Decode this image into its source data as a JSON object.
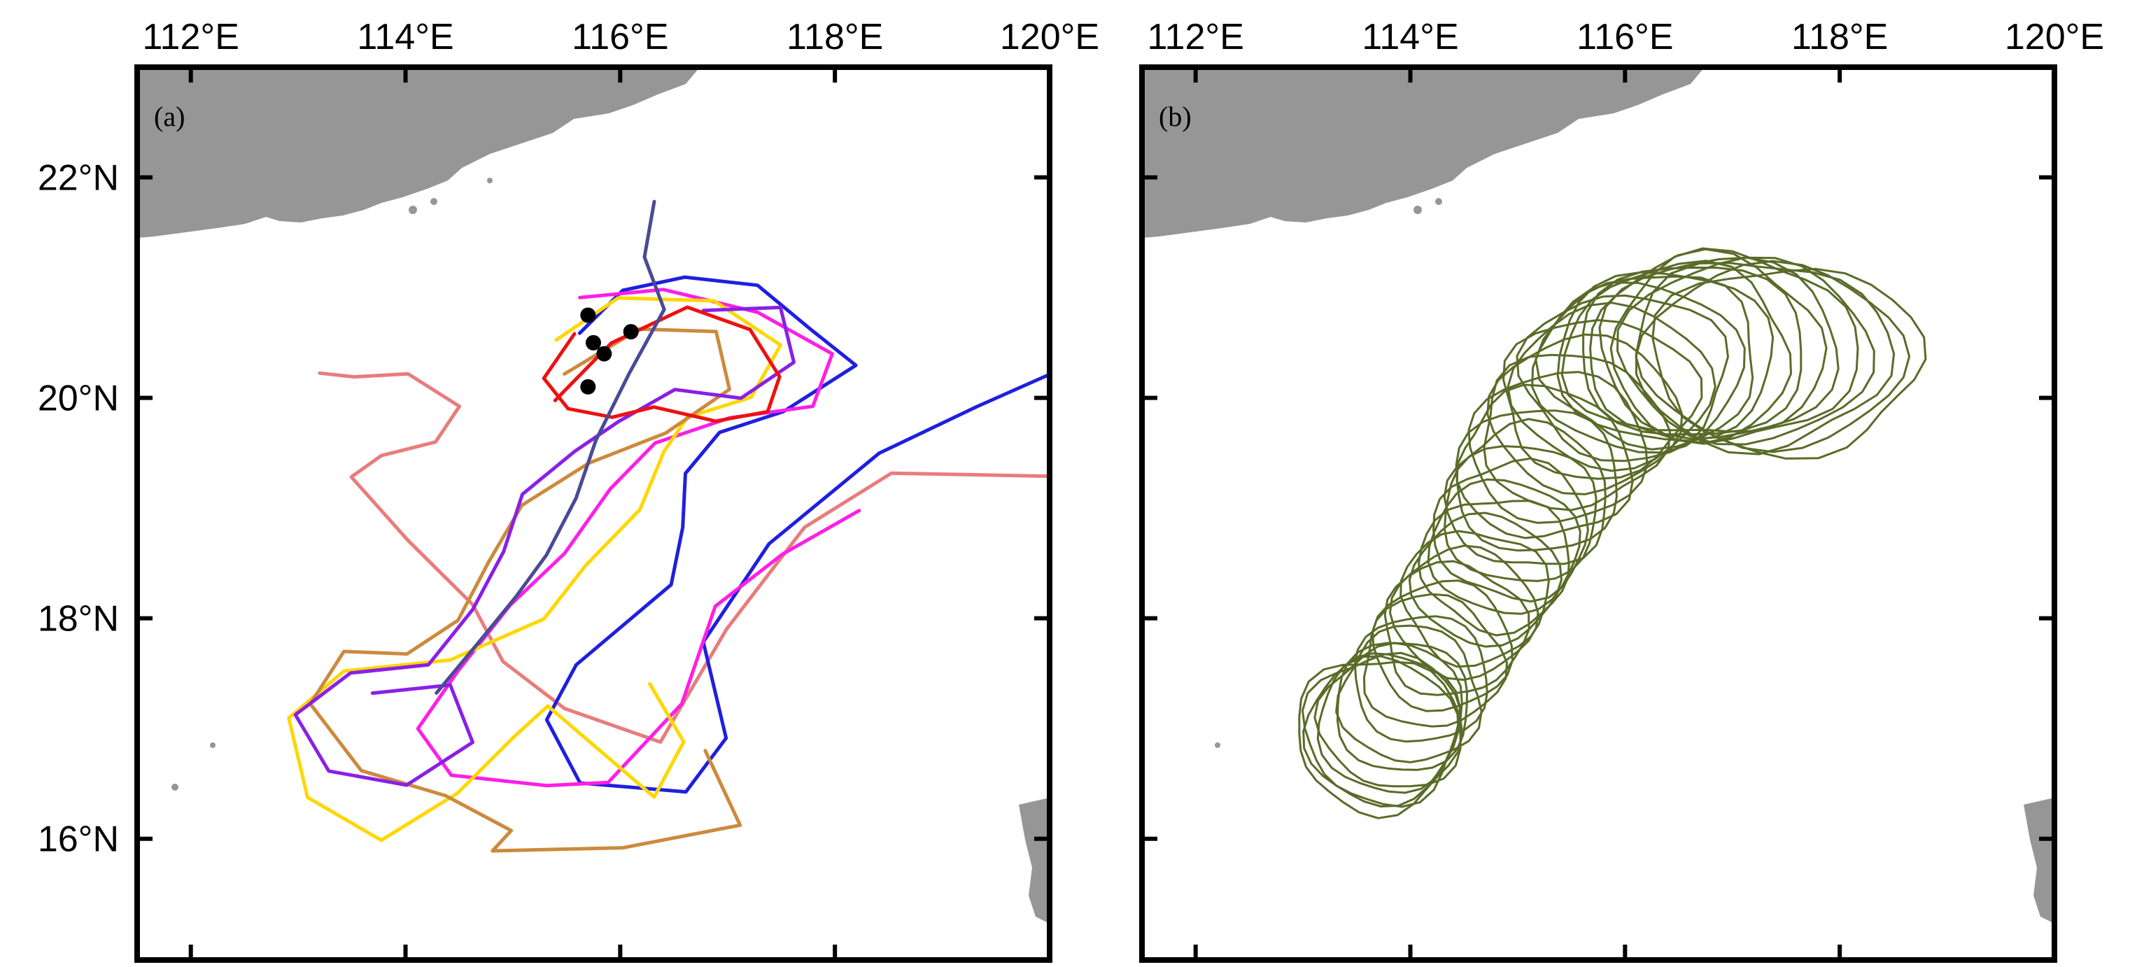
{
  "chart_data": [
    {
      "type": "map",
      "panel_label": "(a)",
      "x_ticks": [
        "112°E",
        "114°E",
        "116°E",
        "118°E",
        "120°E"
      ],
      "y_ticks": [
        "16°N",
        "18°N",
        "20°N",
        "22°N"
      ],
      "xlim": [
        111.5,
        120
      ],
      "ylim": [
        14.9,
        23
      ],
      "land_color": "#969696",
      "black_markers": [
        [
          115.7,
          20.75
        ],
        [
          116.1,
          20.6
        ],
        [
          115.75,
          20.5
        ],
        [
          115.85,
          20.4
        ],
        [
          115.7,
          20.1
        ]
      ],
      "tracks": [
        {
          "color": "#e87c7c",
          "points": [
            [
              113.2,
              20.25
            ],
            [
              113.5,
              20.2
            ],
            [
              114.0,
              20.2
            ],
            [
              114.5,
              19.9
            ],
            [
              114.3,
              19.6
            ],
            [
              113.8,
              19.5
            ],
            [
              113.5,
              19.3
            ],
            [
              114.0,
              18.7
            ],
            [
              114.6,
              18.1
            ],
            [
              114.9,
              17.6
            ],
            [
              115.5,
              17.2
            ],
            [
              116.4,
              16.9
            ],
            [
              117.0,
              17.9
            ],
            [
              117.7,
              18.8
            ],
            [
              118.5,
              19.3
            ],
            [
              120.0,
              19.3
            ]
          ]
        },
        {
          "color": "#1f1fe0",
          "points": [
            [
              115.6,
              20.6
            ],
            [
              116.0,
              21.0
            ],
            [
              116.6,
              21.1
            ],
            [
              117.3,
              21.0
            ],
            [
              117.8,
              20.6
            ],
            [
              118.2,
              20.3
            ],
            [
              117.5,
              19.9
            ],
            [
              116.9,
              19.7
            ],
            [
              116.6,
              19.3
            ],
            [
              116.6,
              18.8
            ],
            [
              116.5,
              18.3
            ],
            [
              115.6,
              17.6
            ],
            [
              115.3,
              17.1
            ],
            [
              115.6,
              16.5
            ],
            [
              116.6,
              16.4
            ],
            [
              117.0,
              16.9
            ],
            [
              116.8,
              17.8
            ],
            [
              117.4,
              18.7
            ],
            [
              118.4,
              19.5
            ],
            [
              119.3,
              19.9
            ],
            [
              120.0,
              20.2
            ]
          ]
        },
        {
          "color": "#ff1ee6",
          "points": [
            [
              115.6,
              20.9
            ],
            [
              116.4,
              21.0
            ],
            [
              117.3,
              20.8
            ],
            [
              118.0,
              20.4
            ],
            [
              117.8,
              19.9
            ],
            [
              117.0,
              19.8
            ],
            [
              116.3,
              19.6
            ],
            [
              115.9,
              19.2
            ],
            [
              115.5,
              18.6
            ],
            [
              115.0,
              18.1
            ],
            [
              114.5,
              17.5
            ],
            [
              114.1,
              17.0
            ],
            [
              114.4,
              16.6
            ],
            [
              115.3,
              16.5
            ],
            [
              115.9,
              16.5
            ],
            [
              116.6,
              17.2
            ],
            [
              116.9,
              18.1
            ],
            [
              117.5,
              18.6
            ],
            [
              118.2,
              19.0
            ]
          ]
        },
        {
          "color": "#ffd700",
          "points": [
            [
              115.4,
              20.5
            ],
            [
              116.0,
              20.9
            ],
            [
              116.9,
              20.9
            ],
            [
              117.5,
              20.5
            ],
            [
              117.2,
              20.0
            ],
            [
              116.6,
              19.8
            ],
            [
              116.4,
              19.5
            ],
            [
              116.2,
              19.0
            ],
            [
              115.7,
              18.5
            ],
            [
              115.3,
              18.0
            ],
            [
              114.4,
              17.6
            ],
            [
              113.4,
              17.5
            ],
            [
              112.9,
              17.1
            ],
            [
              113.1,
              16.4
            ],
            [
              113.8,
              16.0
            ],
            [
              114.5,
              16.4
            ],
            [
              115.0,
              16.9
            ],
            [
              115.3,
              17.2
            ],
            [
              116.3,
              16.4
            ],
            [
              116.6,
              16.9
            ],
            [
              116.3,
              17.4
            ]
          ]
        },
        {
          "color": "#cc8a3c",
          "points": [
            [
              115.5,
              20.2
            ],
            [
              116.2,
              20.6
            ],
            [
              116.9,
              20.6
            ],
            [
              117.0,
              20.1
            ],
            [
              116.4,
              19.7
            ],
            [
              115.7,
              19.4
            ],
            [
              115.1,
              19.0
            ],
            [
              114.8,
              18.5
            ],
            [
              114.5,
              18.0
            ],
            [
              114.0,
              17.7
            ],
            [
              113.4,
              17.7
            ],
            [
              113.1,
              17.2
            ],
            [
              113.6,
              16.6
            ],
            [
              114.4,
              16.4
            ],
            [
              115.0,
              16.1
            ],
            [
              114.8,
              15.9
            ],
            [
              116.0,
              15.9
            ],
            [
              117.1,
              16.1
            ],
            [
              116.8,
              16.8
            ]
          ]
        },
        {
          "color": "#8a1fe6",
          "points": [
            [
              116.8,
              20.8
            ],
            [
              117.5,
              20.8
            ],
            [
              117.6,
              20.3
            ],
            [
              117.1,
              20.0
            ],
            [
              116.5,
              20.1
            ],
            [
              116.0,
              19.8
            ],
            [
              115.6,
              19.5
            ],
            [
              115.1,
              19.1
            ],
            [
              114.9,
              18.6
            ],
            [
              114.6,
              18.1
            ],
            [
              114.2,
              17.6
            ],
            [
              113.5,
              17.5
            ],
            [
              113.0,
              17.1
            ],
            [
              113.3,
              16.6
            ],
            [
              114.0,
              16.5
            ],
            [
              114.6,
              16.9
            ],
            [
              114.4,
              17.4
            ],
            [
              113.7,
              17.3
            ]
          ]
        },
        {
          "color": "#ee1111",
          "points": [
            [
              115.4,
              20.0
            ],
            [
              115.9,
              20.5
            ],
            [
              116.6,
              20.8
            ],
            [
              117.2,
              20.6
            ],
            [
              117.5,
              20.2
            ],
            [
              117.4,
              19.9
            ],
            [
              116.9,
              19.8
            ],
            [
              116.3,
              19.9
            ],
            [
              115.9,
              19.8
            ],
            [
              115.5,
              19.9
            ],
            [
              115.3,
              20.2
            ],
            [
              115.6,
              20.6
            ]
          ]
        },
        {
          "color": "#4a4a96",
          "points": [
            [
              116.3,
              21.8
            ],
            [
              116.2,
              21.3
            ],
            [
              116.4,
              20.8
            ],
            [
              116.1,
              20.2
            ],
            [
              115.8,
              19.6
            ],
            [
              115.6,
              19.1
            ],
            [
              115.3,
              18.6
            ],
            [
              115.0,
              18.2
            ],
            [
              114.7,
              17.8
            ],
            [
              114.3,
              17.3
            ]
          ]
        }
      ]
    },
    {
      "type": "map",
      "panel_label": "(b)",
      "x_ticks": [
        "112°E",
        "114°E",
        "116°E",
        "118°E",
        "120°E"
      ],
      "y_ticks": [
        "16°N",
        "18°N",
        "20°N",
        "22°N"
      ],
      "xlim": [
        111.5,
        120
      ],
      "ylim": [
        14.9,
        23
      ],
      "land_color": "#969696",
      "contour_color": "#5a6b28",
      "contour_centers": [
        [
          117.5,
          20.35
        ],
        [
          117.25,
          20.4
        ],
        [
          117.0,
          20.45
        ],
        [
          116.75,
          20.45
        ],
        [
          116.5,
          20.4
        ],
        [
          116.25,
          20.35
        ],
        [
          116.0,
          20.2
        ],
        [
          115.75,
          20.0
        ],
        [
          115.5,
          19.7
        ],
        [
          115.25,
          19.4
        ],
        [
          115.1,
          19.1
        ],
        [
          114.95,
          18.8
        ],
        [
          114.8,
          18.5
        ],
        [
          114.6,
          18.2
        ],
        [
          114.4,
          17.9
        ],
        [
          114.2,
          17.6
        ],
        [
          114.0,
          17.3
        ],
        [
          113.85,
          17.1
        ],
        [
          113.75,
          17.0
        ],
        [
          113.7,
          16.95
        ]
      ],
      "contour_radii_deg": [
        [
          1.25,
          0.85
        ],
        [
          1.2,
          0.85
        ],
        [
          1.15,
          0.85
        ],
        [
          1.1,
          0.82
        ],
        [
          1.05,
          0.8
        ],
        [
          1.0,
          0.78
        ],
        [
          0.95,
          0.75
        ],
        [
          0.9,
          0.72
        ],
        [
          0.85,
          0.7
        ],
        [
          0.8,
          0.68
        ],
        [
          0.75,
          0.65
        ],
        [
          0.72,
          0.62
        ],
        [
          0.7,
          0.6
        ],
        [
          0.68,
          0.6
        ],
        [
          0.66,
          0.6
        ],
        [
          0.65,
          0.6
        ],
        [
          0.65,
          0.62
        ],
        [
          0.68,
          0.65
        ],
        [
          0.72,
          0.68
        ],
        [
          0.76,
          0.7
        ]
      ]
    }
  ]
}
